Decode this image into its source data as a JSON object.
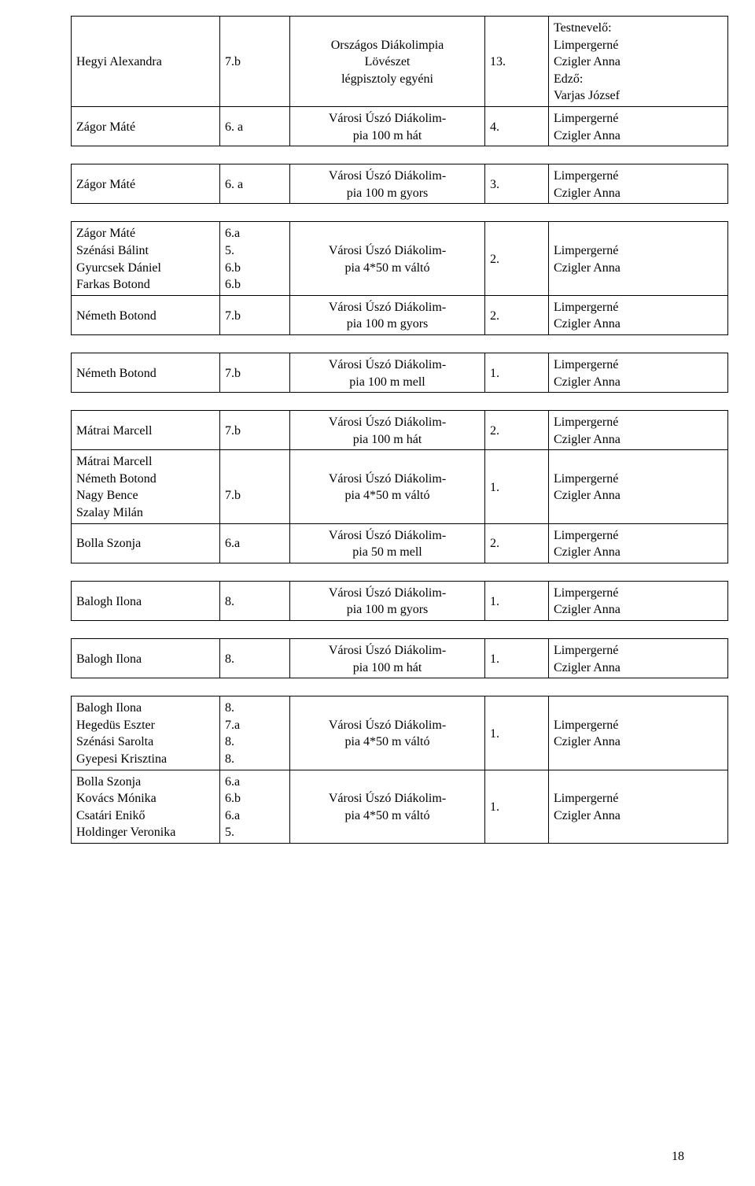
{
  "page_number": "18",
  "text_color": "#000000",
  "background_color": "#ffffff",
  "border_color": "#000000",
  "font_family": "Times New Roman",
  "font_size_pt": 12,
  "tables": [
    {
      "rows": [
        {
          "c1": "Hegyi Alexandra",
          "c2": "7.b",
          "c3": "Országos Diákolimpia\nLövészet\nlégpisztoly egyéni",
          "c4": "13.",
          "c5": "Testnevelő:\nLimpergerné\nCzigler Anna\nEdző:\nVarjas József"
        },
        {
          "c1": "Zágor Máté",
          "c2": "6. a",
          "c3": "Városi Úszó Diákolim-\npia 100 m hát",
          "c4": "4.",
          "c5": "Limpergerné\nCzigler Anna"
        }
      ]
    },
    {
      "rows": [
        {
          "c1": "Zágor Máté",
          "c2": "6. a",
          "c3": "Városi Úszó Diákolim-\npia 100 m gyors",
          "c4": "3.",
          "c5": "Limpergerné\nCzigler Anna"
        }
      ]
    },
    {
      "rows": [
        {
          "c1": "Zágor Máté\nSzénási Bálint\nGyurcsek Dániel\nFarkas Botond",
          "c2": "6.a\n5.\n6.b\n6.b",
          "c3": "Városi Úszó Diákolim-\npia 4*50 m váltó",
          "c4": "2.",
          "c5": "Limpergerné\nCzigler Anna"
        },
        {
          "c1": "Németh Botond",
          "c2": "7.b",
          "c3": "Városi Úszó Diákolim-\npia 100 m gyors",
          "c4": "2.",
          "c5": "Limpergerné\nCzigler Anna"
        }
      ]
    },
    {
      "rows": [
        {
          "c1": "Németh Botond",
          "c2": "7.b",
          "c3": "Városi Úszó Diákolim-\npia 100 m mell",
          "c4": "1.",
          "c5": "Limpergerné\nCzigler Anna"
        }
      ]
    },
    {
      "rows": [
        {
          "c1": "Mátrai Marcell",
          "c2": "7.b",
          "c3": "Városi Úszó Diákolim-\npia 100 m hát",
          "c4": "2.",
          "c5": "Limpergerné\nCzigler Anna"
        },
        {
          "c1": "Mátrai Marcell\nNémeth Botond\nNagy Bence\nSzalay Milán",
          "c2": "\n7.b",
          "c3": "Városi Úszó Diákolim-\npia 4*50 m váltó",
          "c4": "1.",
          "c5": "Limpergerné\nCzigler Anna"
        },
        {
          "c1": "Bolla Szonja",
          "c2": "6.a",
          "c3": "Városi Úszó Diákolim-\npia 50 m mell",
          "c4": "2.",
          "c5": "Limpergerné\nCzigler Anna"
        }
      ]
    },
    {
      "rows": [
        {
          "c1": "Balogh Ilona",
          "c2": "8.",
          "c3": "Városi Úszó Diákolim-\npia 100 m gyors",
          "c4": "1.",
          "c5": "Limpergerné\nCzigler Anna"
        }
      ]
    },
    {
      "rows": [
        {
          "c1": "Balogh Ilona",
          "c2": "8.",
          "c3": "Városi Úszó Diákolim-\npia 100 m hát",
          "c4": "1.",
          "c5": "Limpergerné\nCzigler Anna"
        }
      ]
    },
    {
      "rows": [
        {
          "c1": "Balogh Ilona\nHegedüs Eszter\nSzénási Sarolta\nGyepesi Krisztina",
          "c2": "8.\n7.a\n8.\n8.",
          "c3": "Városi Úszó Diákolim-\npia 4*50 m váltó",
          "c4": "1.",
          "c5": "Limpergerné\nCzigler Anna"
        },
        {
          "c1": "Bolla Szonja\nKovács Mónika\nCsatári Enikő\nHoldinger Veronika",
          "c2": "6.a\n6.b\n6.a\n5.",
          "c3": "Városi Úszó Diákolim-\npia 4*50 m váltó",
          "c4": "1.",
          "c5": "Limpergerné\nCzigler Anna"
        }
      ]
    }
  ],
  "columns": [
    "c1",
    "c2",
    "c3",
    "c4",
    "c5"
  ]
}
